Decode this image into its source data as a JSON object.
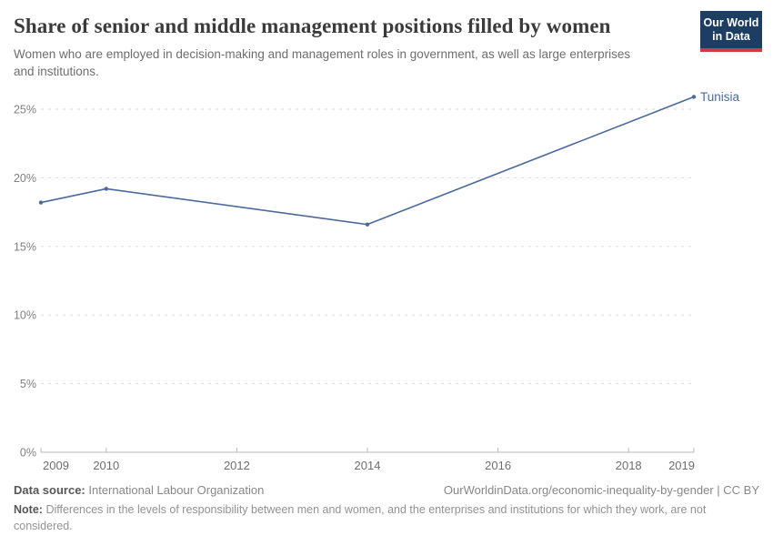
{
  "header": {
    "title": "Share of senior and middle management positions filled by women",
    "subtitle": "Women who are employed in decision-making and management roles in government, as well as large enterprises and institutions.",
    "logo": {
      "line1": "Our World",
      "line2": "in Data"
    }
  },
  "chart_data": {
    "type": "line",
    "title": "Share of senior and middle management positions filled by women",
    "series": [
      {
        "name": "Tunisia",
        "color": "#4C6A9C",
        "points": [
          [
            2009,
            18.2
          ],
          [
            2010,
            19.2
          ],
          [
            2014,
            16.6
          ],
          [
            2019,
            25.9
          ]
        ]
      }
    ],
    "end_label": "Tunisia",
    "x_ticks": [
      2009,
      2010,
      2012,
      2014,
      2016,
      2018,
      2019
    ],
    "y_ticks": [
      0,
      5,
      10,
      15,
      20,
      25
    ],
    "y_tick_suffix": "%",
    "xlim": [
      2009,
      2019
    ],
    "ylim": [
      0,
      26.5
    ],
    "grid": "horizontal-dashed",
    "legend_position": "end-of-line-label"
  },
  "footer": {
    "datasource_label": "Data source:",
    "datasource_value": "International Labour Organization",
    "link": "OurWorldinData.org/economic-inequality-by-gender | CC BY",
    "note_label": "Note:",
    "note_text": "Differences in the levels of responsibility between men and women, and the enterprises and institutions for which they work, are not considered."
  },
  "colors": {
    "line": "#4C6A9C",
    "end_label": "#4C6A9C",
    "grid": "#dddddd",
    "axis": "#b8b8b8",
    "x_tick_label": "#6e6e6e",
    "y_tick_label": "#808080",
    "logo_bg": "#1d3d63",
    "logo_stripe": "#cc3e3e"
  }
}
